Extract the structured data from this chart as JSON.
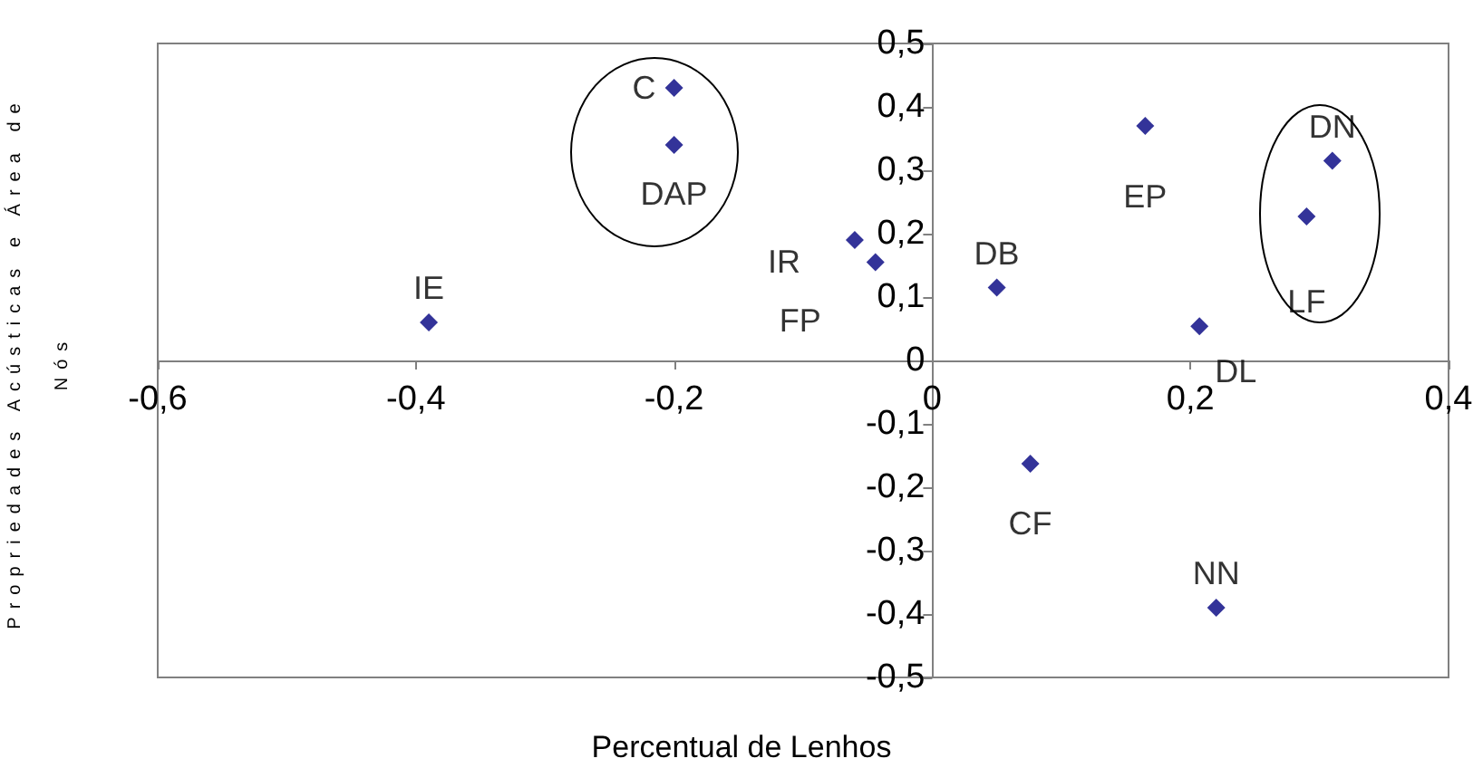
{
  "chart_data": {
    "type": "scatter",
    "xlabel": "Percentual de Lenhos",
    "ylabel": "Propriedades Acústicas e Área de Nós",
    "x": [
      -0.2,
      -0.2,
      -0.06,
      -0.044,
      -0.39,
      0.05,
      0.165,
      0.31,
      0.29,
      0.207,
      0.076,
      0.22
    ],
    "values": [
      0.43,
      0.34,
      0.19,
      0.155,
      0.06,
      0.115,
      0.37,
      0.315,
      0.227,
      0.054,
      -0.163,
      -0.39
    ],
    "value_labels": [
      "C",
      "DAP",
      "IR",
      "FP",
      "IE",
      "DB",
      "EP",
      "DN",
      "LF",
      "DL",
      "CF",
      "NN"
    ],
    "color": "#000080",
    "marker": "diamond",
    "xlim": [
      -0.6,
      0.4
    ],
    "xticks": [
      {
        "value": -0.6,
        "label": "-0,6"
      },
      {
        "value": -0.4,
        "label": "-0,4"
      },
      {
        "value": -0.2,
        "label": "-0,2"
      },
      {
        "value": 0,
        "label": "0"
      },
      {
        "value": 0.2,
        "label": "0,2"
      },
      {
        "value": 0.4,
        "label": "0,4"
      }
    ],
    "ylim": [
      -0.5,
      0.5
    ],
    "yticks": [
      {
        "value": -0.5,
        "label": "-0,5"
      },
      {
        "value": -0.4,
        "label": "-0,4"
      },
      {
        "value": -0.3,
        "label": "-0,3"
      },
      {
        "value": -0.2,
        "label": "-0,2"
      },
      {
        "value": -0.1,
        "label": "-0,1"
      },
      {
        "value": 0,
        "label": "0"
      },
      {
        "value": 0.1,
        "label": "0,1"
      },
      {
        "value": 0.2,
        "label": "0,2"
      },
      {
        "value": 0.3,
        "label": "0,3"
      },
      {
        "value": 0.4,
        "label": "0,4"
      },
      {
        "value": 0.5,
        "label": "0,5"
      }
    ]
  }
}
